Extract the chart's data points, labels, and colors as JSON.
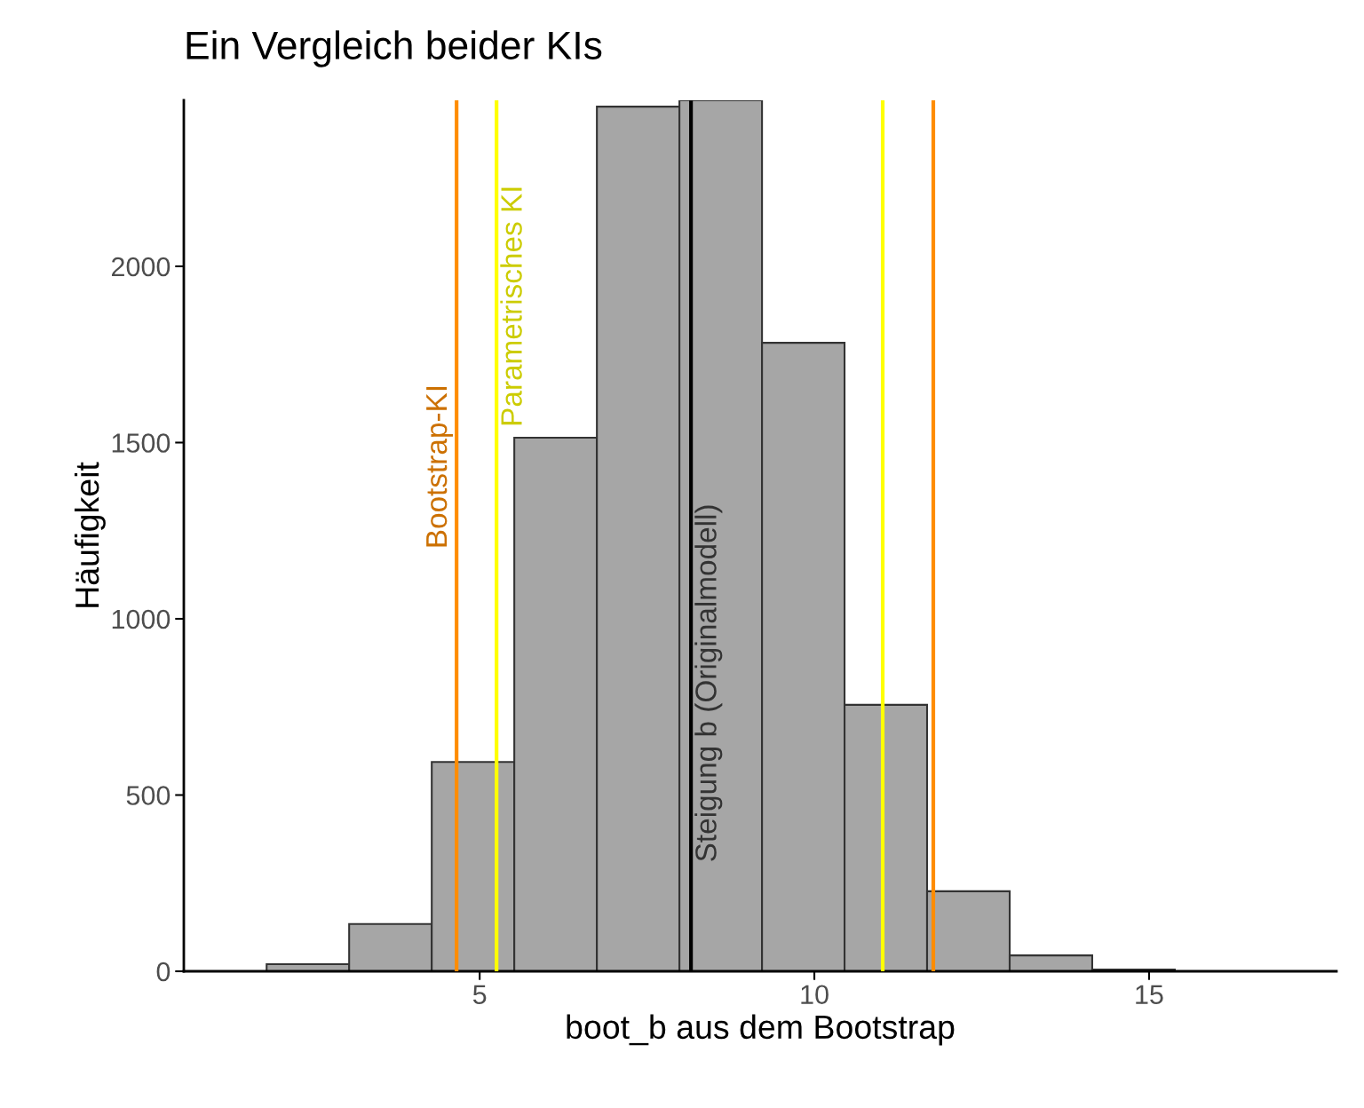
{
  "chart_data": {
    "type": "histogram",
    "title": "Ein Vergleich beider KIs",
    "xlabel": "boot_b aus dem Bootstrap",
    "ylabel": "Häufigkeit",
    "bins": [
      1.817,
      3.05,
      4.284,
      5.517,
      6.751,
      7.984,
      9.218,
      10.451,
      11.684,
      12.918,
      14.151,
      15.385
    ],
    "values": [
      20,
      134,
      594,
      1514,
      2453,
      2471,
      1783,
      756,
      227,
      45,
      5
    ],
    "color": "#a6a6a6",
    "xlim": [
      0.58,
      17.8
    ],
    "xticks": [
      5,
      10,
      15
    ],
    "ylim": [
      0,
      2471
    ],
    "yticks": [
      0,
      500,
      1000,
      1500,
      2000
    ],
    "grid": false,
    "ref_lines": [
      {
        "axis": "x",
        "value": 4.655,
        "color": "#ff8c00",
        "label": "Bootstrap-KI"
      },
      {
        "axis": "x",
        "value": 5.252,
        "color": "#ffff00",
        "label": "Parametrisches KI"
      },
      {
        "axis": "x",
        "value": 8.157,
        "color": "#000000",
        "label": "Steigung b (Originalmodell)"
      },
      {
        "axis": "x",
        "value": 11.021,
        "color": "#ffff00"
      },
      {
        "axis": "x",
        "value": 11.777,
        "color": "#ff8c00"
      }
    ]
  }
}
